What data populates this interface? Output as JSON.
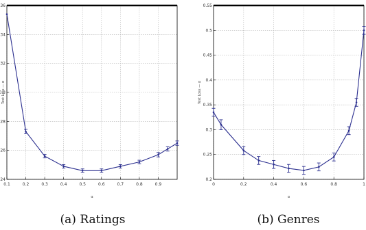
{
  "colors": {
    "series": "#2b2f8f",
    "grid": "#b8b8b8",
    "frame": "#000000"
  },
  "chart_data": [
    {
      "type": "line",
      "caption": "(a) Ratings",
      "xlabel": "α",
      "ylabel": "Test Loss — α",
      "xlim": [
        0.1,
        1.0
      ],
      "ylim": [
        0.24,
        0.36
      ],
      "grid": true,
      "x_ticks": [
        {
          "v": 0.1,
          "label": "0.1"
        },
        {
          "v": 0.2,
          "label": "0.2"
        },
        {
          "v": 0.3,
          "label": "0.3"
        },
        {
          "v": 0.4,
          "label": "0.4"
        },
        {
          "v": 0.5,
          "label": "0.5"
        },
        {
          "v": 0.6,
          "label": "0.6"
        },
        {
          "v": 0.7,
          "label": "0.7"
        },
        {
          "v": 0.8,
          "label": "0.8"
        },
        {
          "v": 0.9,
          "label": "0.9"
        }
      ],
      "y_ticks": [
        {
          "v": 0.24,
          "label": "0.24"
        },
        {
          "v": 0.26,
          "label": "0.26"
        },
        {
          "v": 0.28,
          "label": "0.28"
        },
        {
          "v": 0.3,
          "label": "0.3"
        },
        {
          "v": 0.32,
          "label": "0.32"
        },
        {
          "v": 0.34,
          "label": "0.34"
        },
        {
          "v": 0.36,
          "label": "0.36"
        }
      ],
      "series": [
        {
          "x": [
            0.1,
            0.2,
            0.3,
            0.4,
            0.5,
            0.6,
            0.7,
            0.8,
            0.9,
            0.95,
            1.0
          ],
          "y": [
            0.354,
            0.273,
            0.256,
            0.249,
            0.246,
            0.246,
            0.249,
            0.252,
            0.257,
            0.261,
            0.265
          ],
          "err": [
            0.0,
            0.0015,
            0.0012,
            0.0012,
            0.0012,
            0.0012,
            0.0012,
            0.0012,
            0.0015,
            0.0015,
            0.0015
          ]
        }
      ]
    },
    {
      "type": "line",
      "caption": "(b) Genres",
      "xlabel": "α",
      "ylabel": "Test Loss — α",
      "xlim": [
        0.0,
        1.0
      ],
      "ylim": [
        0.2,
        0.55
      ],
      "grid": true,
      "x_ticks": [
        {
          "v": 0.0,
          "label": "0"
        },
        {
          "v": 0.2,
          "label": "0.2"
        },
        {
          "v": 0.4,
          "label": "0.4"
        },
        {
          "v": 0.6,
          "label": "0.6"
        },
        {
          "v": 0.8,
          "label": "0.8"
        },
        {
          "v": 1.0,
          "label": "1"
        }
      ],
      "y_ticks": [
        {
          "v": 0.2,
          "label": "0.2"
        },
        {
          "v": 0.25,
          "label": "0.25"
        },
        {
          "v": 0.3,
          "label": "0.3"
        },
        {
          "v": 0.35,
          "label": "0.35"
        },
        {
          "v": 0.4,
          "label": "0.4"
        },
        {
          "v": 0.45,
          "label": "0.45"
        },
        {
          "v": 0.5,
          "label": "0.5"
        },
        {
          "v": 0.55,
          "label": "0.55"
        }
      ],
      "series": [
        {
          "x": [
            0.0,
            0.05,
            0.2,
            0.3,
            0.4,
            0.5,
            0.6,
            0.7,
            0.8,
            0.9,
            0.95,
            1.0
          ],
          "y": [
            0.335,
            0.31,
            0.258,
            0.238,
            0.23,
            0.222,
            0.218,
            0.225,
            0.245,
            0.298,
            0.355,
            0.5
          ],
          "err": [
            0.008,
            0.01,
            0.008,
            0.008,
            0.008,
            0.008,
            0.008,
            0.008,
            0.008,
            0.008,
            0.008,
            0.008
          ]
        }
      ]
    }
  ]
}
